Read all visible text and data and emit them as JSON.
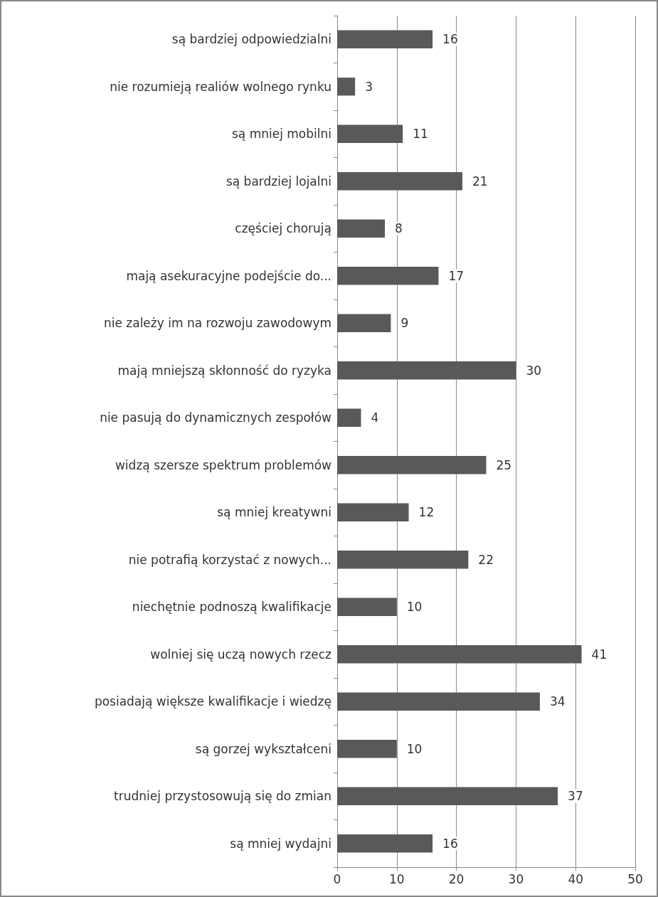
{
  "chart_data": {
    "type": "bar",
    "orientation": "horizontal",
    "categories": [
      "są bardziej odpowiedzialni",
      "nie rozumieją realiów wolnego rynku",
      "są mniej mobilni",
      "są bardziej lojalni",
      "częściej chorują",
      "mają asekuracyjne podejście do...",
      "nie zależy im na rozwoju zawodowym",
      "mają mniejszą skłonność do ryzyka",
      "nie pasują do dynamicznych zespołów",
      "widzą szersze spektrum problemów",
      "są mniej kreatywni",
      "nie potrafią korzystać z nowych...",
      "niechętnie podnoszą kwalifikacje",
      "wolniej się uczą nowych rzecz",
      "posiadają większe kwalifikacje i wiedzę",
      "są gorzej wykształceni",
      "trudniej przystosowują się do zmian",
      "są mniej wydajni"
    ],
    "values": [
      16,
      3,
      11,
      21,
      8,
      17,
      9,
      30,
      4,
      25,
      12,
      22,
      10,
      41,
      34,
      10,
      37,
      16
    ],
    "color": "#595959",
    "xlim": [
      0,
      50
    ],
    "xticks": [
      0,
      10,
      20,
      30,
      40,
      50
    ],
    "grid": "x",
    "data_labels": true
  }
}
